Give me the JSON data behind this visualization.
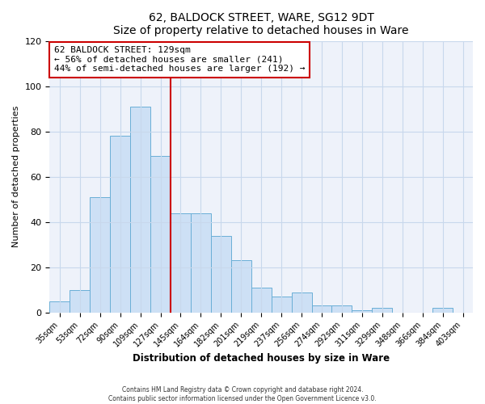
{
  "title": "62, BALDOCK STREET, WARE, SG12 9DT",
  "subtitle": "Size of property relative to detached houses in Ware",
  "xlabel": "Distribution of detached houses by size in Ware",
  "ylabel": "Number of detached properties",
  "bar_labels": [
    "35sqm",
    "53sqm",
    "72sqm",
    "90sqm",
    "109sqm",
    "127sqm",
    "145sqm",
    "164sqm",
    "182sqm",
    "201sqm",
    "219sqm",
    "237sqm",
    "256sqm",
    "274sqm",
    "292sqm",
    "311sqm",
    "329sqm",
    "348sqm",
    "366sqm",
    "384sqm",
    "403sqm"
  ],
  "bar_values": [
    5,
    10,
    51,
    78,
    91,
    69,
    44,
    44,
    34,
    23,
    11,
    7,
    9,
    3,
    3,
    1,
    2,
    0,
    0,
    2,
    0
  ],
  "bar_color": "#cde0f5",
  "bar_edge_color": "#6aafd6",
  "ylim": [
    0,
    120
  ],
  "yticks": [
    0,
    20,
    40,
    60,
    80,
    100,
    120
  ],
  "vline_index": 5,
  "property_line_label": "62 BALDOCK STREET: 129sqm",
  "annotation_line1": "← 56% of detached houses are smaller (241)",
  "annotation_line2": "44% of semi-detached houses are larger (192) →",
  "annotation_box_color": "#ffffff",
  "annotation_box_edge": "#cc0000",
  "vline_color": "#cc0000",
  "footer1": "Contains HM Land Registry data © Crown copyright and database right 2024.",
  "footer2": "Contains public sector information licensed under the Open Government Licence v3.0.",
  "grid_color": "#c8d8ec",
  "bg_color": "#eef2fa",
  "fig_bg": "#ffffff",
  "title_fontsize": 10,
  "subtitle_fontsize": 9
}
